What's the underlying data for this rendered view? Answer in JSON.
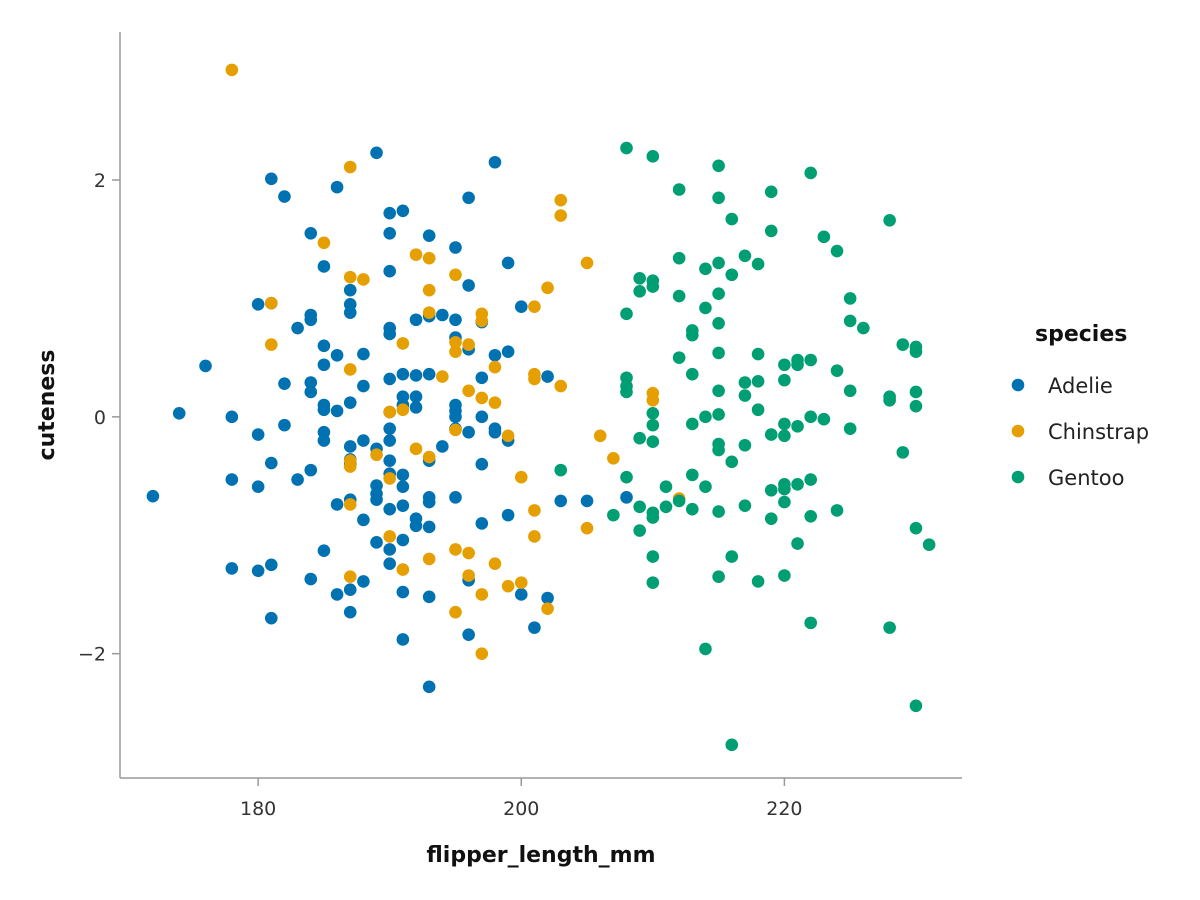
{
  "chart_data": {
    "type": "scatter",
    "title": "",
    "xlabel": "flipper_length_mm",
    "ylabel": "cuteness",
    "xlim": [
      169.5,
      233.5
    ],
    "ylim": [
      -3.05,
      3.25
    ],
    "xticks": [
      180,
      200,
      220
    ],
    "yticks": [
      -2,
      0,
      2
    ],
    "xtick_labels": [
      "180",
      "200",
      "220"
    ],
    "ytick_labels": [
      "−2",
      "0",
      "2"
    ],
    "grid": false,
    "legend": {
      "title": "species",
      "placement": "right"
    },
    "series": [
      {
        "name": "Adelie",
        "color": "#0072B2",
        "points": [
          [
            172,
            -0.67
          ],
          [
            174,
            0.03
          ],
          [
            176,
            0.43
          ],
          [
            178,
            0
          ],
          [
            178,
            -0.53
          ],
          [
            178,
            -1.28
          ],
          [
            180,
            0.95
          ],
          [
            180,
            -0.15
          ],
          [
            180,
            -0.59
          ],
          [
            180,
            -1.3
          ],
          [
            181,
            2.01
          ],
          [
            181,
            0.96
          ],
          [
            181,
            -0.39
          ],
          [
            181,
            -1.25
          ],
          [
            181,
            -1.7
          ],
          [
            182,
            1.86
          ],
          [
            182,
            0.28
          ],
          [
            182,
            -0.07
          ],
          [
            183,
            0.75
          ],
          [
            183,
            -0.53
          ],
          [
            184,
            1.55
          ],
          [
            184,
            0.86
          ],
          [
            184,
            0.82
          ],
          [
            184,
            0.29
          ],
          [
            184,
            0.21
          ],
          [
            184,
            -0.45
          ],
          [
            184,
            -1.37
          ],
          [
            185,
            1.27
          ],
          [
            185,
            0.6
          ],
          [
            185,
            0.44
          ],
          [
            185,
            0.1
          ],
          [
            185,
            0.06
          ],
          [
            185,
            -0.13
          ],
          [
            185,
            -0.2
          ],
          [
            185,
            -1.13
          ],
          [
            186,
            1.94
          ],
          [
            186,
            0.52
          ],
          [
            186,
            0.05
          ],
          [
            186,
            -0.74
          ],
          [
            186,
            -1.5
          ],
          [
            187,
            1.07
          ],
          [
            187,
            0.95
          ],
          [
            187,
            0.88
          ],
          [
            187,
            0.12
          ],
          [
            187,
            -0.25
          ],
          [
            187,
            -0.36
          ],
          [
            187,
            -0.4
          ],
          [
            187,
            -0.7
          ],
          [
            187,
            -1.46
          ],
          [
            187,
            -1.65
          ],
          [
            188,
            0.53
          ],
          [
            188,
            0.26
          ],
          [
            188,
            -0.2
          ],
          [
            188,
            -0.87
          ],
          [
            188,
            -1.39
          ],
          [
            189,
            2.23
          ],
          [
            189,
            -0.27
          ],
          [
            189,
            -0.58
          ],
          [
            189,
            -0.65
          ],
          [
            189,
            -0.7
          ],
          [
            189,
            -1.06
          ],
          [
            190,
            1.72
          ],
          [
            190,
            1.55
          ],
          [
            190,
            1.23
          ],
          [
            190,
            0.75
          ],
          [
            190,
            0.7
          ],
          [
            190,
            0.32
          ],
          [
            190,
            0.04
          ],
          [
            190,
            -0.1
          ],
          [
            190,
            -0.2
          ],
          [
            190,
            -0.37
          ],
          [
            190,
            -0.48
          ],
          [
            190,
            -0.78
          ],
          [
            190,
            -1.12
          ],
          [
            190,
            -1.24
          ],
          [
            191,
            1.74
          ],
          [
            191,
            0.36
          ],
          [
            191,
            0.17
          ],
          [
            191,
            0.1
          ],
          [
            191,
            -0.49
          ],
          [
            191,
            -0.59
          ],
          [
            191,
            -0.75
          ],
          [
            191,
            -1.04
          ],
          [
            191,
            -1.48
          ],
          [
            191,
            -1.88
          ],
          [
            192,
            0.82
          ],
          [
            192,
            0.35
          ],
          [
            192,
            0.17
          ],
          [
            192,
            0.08
          ],
          [
            192,
            -0.86
          ],
          [
            192,
            -0.92
          ],
          [
            193,
            1.53
          ],
          [
            193,
            0.85
          ],
          [
            193,
            0.36
          ],
          [
            193,
            -0.37
          ],
          [
            193,
            -0.68
          ],
          [
            193,
            -0.72
          ],
          [
            193,
            -0.93
          ],
          [
            193,
            -1.52
          ],
          [
            193,
            -2.28
          ],
          [
            194,
            0.86
          ],
          [
            194,
            -0.25
          ],
          [
            195,
            1.43
          ],
          [
            195,
            0.82
          ],
          [
            195,
            0.67
          ],
          [
            195,
            0.1
          ],
          [
            195,
            0.05
          ],
          [
            195,
            0
          ],
          [
            195,
            -0.1
          ],
          [
            195,
            -0.68
          ],
          [
            196,
            1.85
          ],
          [
            196,
            1.11
          ],
          [
            196,
            0.57
          ],
          [
            196,
            -0.13
          ],
          [
            196,
            -1.38
          ],
          [
            196,
            -1.84
          ],
          [
            197,
            0.8
          ],
          [
            197,
            0.33
          ],
          [
            197,
            0
          ],
          [
            197,
            -0.4
          ],
          [
            197,
            -0.9
          ],
          [
            198,
            2.15
          ],
          [
            198,
            0.52
          ],
          [
            198,
            -0.1
          ],
          [
            198,
            -0.13
          ],
          [
            199,
            1.3
          ],
          [
            199,
            0.55
          ],
          [
            199,
            -0.2
          ],
          [
            199,
            -0.83
          ],
          [
            200,
            0.93
          ],
          [
            200,
            -1.5
          ],
          [
            201,
            -1.78
          ],
          [
            202,
            0.34
          ],
          [
            202,
            -1.53
          ],
          [
            203,
            -0.71
          ],
          [
            205,
            -0.71
          ],
          [
            208,
            -0.68
          ]
        ]
      },
      {
        "name": "Chinstrap",
        "color": "#E69F00",
        "points": [
          [
            178,
            2.93
          ],
          [
            181,
            0.96
          ],
          [
            181,
            0.61
          ],
          [
            185,
            1.47
          ],
          [
            187,
            2.11
          ],
          [
            187,
            1.18
          ],
          [
            187,
            0.4
          ],
          [
            187,
            -0.37
          ],
          [
            187,
            -0.42
          ],
          [
            187,
            -0.74
          ],
          [
            187,
            -1.35
          ],
          [
            188,
            1.16
          ],
          [
            189,
            -0.32
          ],
          [
            190,
            0.04
          ],
          [
            190,
            -0.52
          ],
          [
            190,
            -1.01
          ],
          [
            191,
            0.62
          ],
          [
            191,
            0.06
          ],
          [
            191,
            -1.29
          ],
          [
            192,
            1.37
          ],
          [
            192,
            -0.27
          ],
          [
            193,
            1.34
          ],
          [
            193,
            1.07
          ],
          [
            193,
            0.88
          ],
          [
            193,
            -0.34
          ],
          [
            193,
            -1.2
          ],
          [
            194,
            0.34
          ],
          [
            195,
            1.2
          ],
          [
            195,
            0.63
          ],
          [
            195,
            0.55
          ],
          [
            195,
            -0.11
          ],
          [
            195,
            -1.12
          ],
          [
            195,
            -1.65
          ],
          [
            196,
            0.61
          ],
          [
            196,
            0.22
          ],
          [
            196,
            -1.15
          ],
          [
            196,
            -1.34
          ],
          [
            197,
            0.87
          ],
          [
            197,
            0.81
          ],
          [
            197,
            0.16
          ],
          [
            197,
            -1.5
          ],
          [
            197,
            -2
          ],
          [
            198,
            0.42
          ],
          [
            198,
            0.12
          ],
          [
            198,
            -1.24
          ],
          [
            199,
            -0.16
          ],
          [
            199,
            -1.43
          ],
          [
            200,
            -0.51
          ],
          [
            200,
            -1.4
          ],
          [
            201,
            0.93
          ],
          [
            201,
            0.36
          ],
          [
            201,
            0.32
          ],
          [
            201,
            -0.79
          ],
          [
            201,
            -1.01
          ],
          [
            202,
            1.09
          ],
          [
            202,
            -1.62
          ],
          [
            203,
            1.83
          ],
          [
            203,
            1.7
          ],
          [
            203,
            0.26
          ],
          [
            205,
            1.3
          ],
          [
            205,
            -0.94
          ],
          [
            206,
            -0.16
          ],
          [
            207,
            -0.35
          ],
          [
            210,
            0.2
          ],
          [
            210,
            0.14
          ],
          [
            212,
            -0.69
          ]
        ]
      },
      {
        "name": "Gentoo",
        "color": "#009E73",
        "points": [
          [
            203,
            -0.45
          ],
          [
            207,
            -0.83
          ],
          [
            208,
            2.27
          ],
          [
            208,
            0.87
          ],
          [
            208,
            0.33
          ],
          [
            208,
            0.26
          ],
          [
            208,
            0.21
          ],
          [
            208,
            -0.51
          ],
          [
            209,
            1.17
          ],
          [
            209,
            1.06
          ],
          [
            209,
            -0.18
          ],
          [
            209,
            -0.76
          ],
          [
            209,
            -0.96
          ],
          [
            210,
            2.2
          ],
          [
            210,
            1.15
          ],
          [
            210,
            1.1
          ],
          [
            210,
            0.03
          ],
          [
            210,
            -0.07
          ],
          [
            210,
            -0.21
          ],
          [
            210,
            -0.81
          ],
          [
            210,
            -0.85
          ],
          [
            210,
            -1.18
          ],
          [
            210,
            -1.4
          ],
          [
            211,
            -0.59
          ],
          [
            211,
            -0.76
          ],
          [
            212,
            1.92
          ],
          [
            212,
            1.34
          ],
          [
            212,
            1.02
          ],
          [
            212,
            0.5
          ],
          [
            212,
            -0.71
          ],
          [
            213,
            0.73
          ],
          [
            213,
            0.69
          ],
          [
            213,
            0.36
          ],
          [
            213,
            -0.06
          ],
          [
            213,
            -0.49
          ],
          [
            213,
            -0.78
          ],
          [
            214,
            1.25
          ],
          [
            214,
            0.92
          ],
          [
            214,
            0
          ],
          [
            214,
            -0.59
          ],
          [
            214,
            -1.96
          ],
          [
            215,
            2.12
          ],
          [
            215,
            1.85
          ],
          [
            215,
            1.3
          ],
          [
            215,
            1.04
          ],
          [
            215,
            0.79
          ],
          [
            215,
            0.54
          ],
          [
            215,
            0.22
          ],
          [
            215,
            0.02
          ],
          [
            215,
            -0.23
          ],
          [
            215,
            -0.28
          ],
          [
            215,
            -0.8
          ],
          [
            215,
            -1.35
          ],
          [
            216,
            1.67
          ],
          [
            216,
            1.2
          ],
          [
            216,
            -0.38
          ],
          [
            216,
            -1.18
          ],
          [
            216,
            -2.77
          ],
          [
            217,
            1.36
          ],
          [
            217,
            0.29
          ],
          [
            217,
            0.18
          ],
          [
            217,
            -0.24
          ],
          [
            217,
            -0.75
          ],
          [
            218,
            1.29
          ],
          [
            218,
            0.53
          ],
          [
            218,
            0.3
          ],
          [
            218,
            0.06
          ],
          [
            218,
            -1.39
          ],
          [
            219,
            1.9
          ],
          [
            219,
            1.57
          ],
          [
            219,
            -0.15
          ],
          [
            219,
            -0.62
          ],
          [
            219,
            -0.86
          ],
          [
            220,
            0.44
          ],
          [
            220,
            0.31
          ],
          [
            220,
            -0.06
          ],
          [
            220,
            -0.16
          ],
          [
            220,
            -0.57
          ],
          [
            220,
            -0.61
          ],
          [
            220,
            -0.72
          ],
          [
            220,
            -1.34
          ],
          [
            221,
            0.48
          ],
          [
            221,
            0.44
          ],
          [
            221,
            -0.08
          ],
          [
            221,
            -0.57
          ],
          [
            221,
            -1.07
          ],
          [
            222,
            2.06
          ],
          [
            222,
            0.48
          ],
          [
            222,
            0
          ],
          [
            222,
            -0.53
          ],
          [
            222,
            -0.84
          ],
          [
            222,
            -1.74
          ],
          [
            223,
            1.52
          ],
          [
            223,
            -0.02
          ],
          [
            224,
            1.4
          ],
          [
            224,
            0.39
          ],
          [
            224,
            -0.79
          ],
          [
            225,
            1
          ],
          [
            225,
            0.81
          ],
          [
            225,
            0.22
          ],
          [
            225,
            -0.1
          ],
          [
            226,
            0.75
          ],
          [
            228,
            1.66
          ],
          [
            228,
            0.17
          ],
          [
            228,
            0.14
          ],
          [
            228,
            -1.78
          ],
          [
            229,
            0.61
          ],
          [
            229,
            -0.3
          ],
          [
            230,
            0.59
          ],
          [
            230,
            0.55
          ],
          [
            230,
            0.21
          ],
          [
            230,
            0.09
          ],
          [
            230,
            -0.94
          ],
          [
            230,
            -2.44
          ],
          [
            231,
            -1.08
          ]
        ]
      }
    ]
  }
}
